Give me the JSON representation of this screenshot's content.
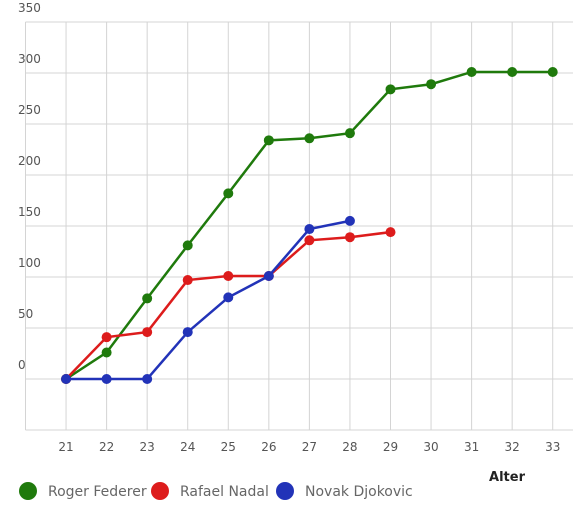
{
  "chart_data": {
    "type": "line",
    "xlabel": "Alter",
    "x": [
      21,
      22,
      23,
      24,
      25,
      26,
      27,
      28,
      29,
      30,
      31,
      32,
      33
    ],
    "series": [
      {
        "name": "Roger Federer",
        "color": "#1f7a0c",
        "values": [
          0,
          26,
          79,
          131,
          182,
          234,
          236,
          241,
          284,
          289,
          301,
          301,
          301
        ]
      },
      {
        "name": "Rafael Nadal",
        "color": "#dd1c1c",
        "values": [
          0,
          41,
          46,
          97,
          101,
          101,
          136,
          139,
          144,
          null,
          null,
          null,
          null
        ]
      },
      {
        "name": "Novak Djokovic",
        "color": "#2233b8",
        "values": [
          0,
          0,
          0,
          46,
          80,
          101,
          147,
          155,
          null,
          null,
          null,
          null,
          null
        ]
      }
    ],
    "xlim": [
      20,
      33.5
    ],
    "ylim": [
      -50,
      350
    ],
    "xticks": [
      21,
      22,
      23,
      24,
      25,
      26,
      27,
      28,
      29,
      30,
      31,
      32,
      33
    ],
    "yticks": [
      0,
      50,
      100,
      150,
      200,
      250,
      300,
      350
    ],
    "grid": true
  }
}
